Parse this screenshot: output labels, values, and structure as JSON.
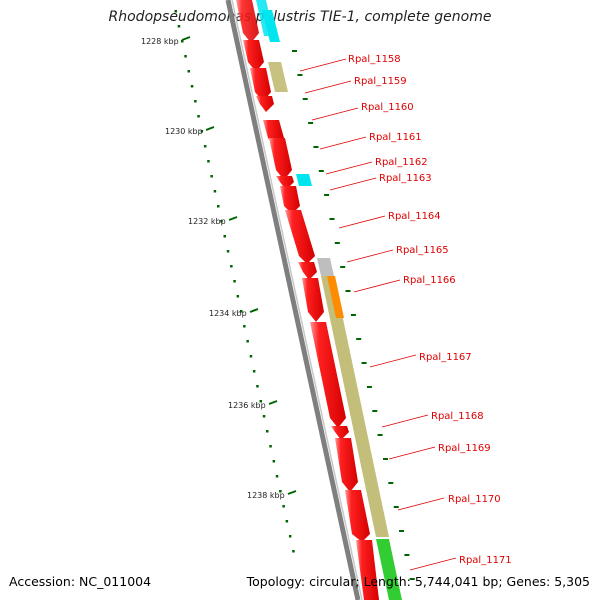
{
  "title": "Rhodopseudomonas palustris TIE-1, complete genome",
  "footer": {
    "accession": "Accession: NC_011004",
    "summary": "Topology: circular; Length: 5,744,041 bp; Genes: 5,305"
  },
  "ticks": [
    "1228 kbp",
    "1230 kbp",
    "1232 kbp",
    "1234 kbp",
    "1236 kbp",
    "1238 kbp"
  ],
  "genes": [
    "Rpal_1158",
    "Rpal_1159",
    "Rpal_1160",
    "Rpal_1161",
    "Rpal_1162",
    "Rpal_1163",
    "Rpal_1164",
    "Rpal_1165",
    "Rpal_1166",
    "Rpal_1167",
    "Rpal_1168",
    "Rpal_1169",
    "Rpal_1170",
    "Rpal_1171"
  ],
  "colors": {
    "cds": "#ff0000",
    "cyan_feature": "#00e5ee",
    "khaki_feature": "#bdb76b",
    "orange_feature": "#ff8c00",
    "green_feature": "#32cd32",
    "gray_feature": "#bebebe",
    "backbone": "#808080",
    "tick": "#006400",
    "label": "#e00000"
  }
}
